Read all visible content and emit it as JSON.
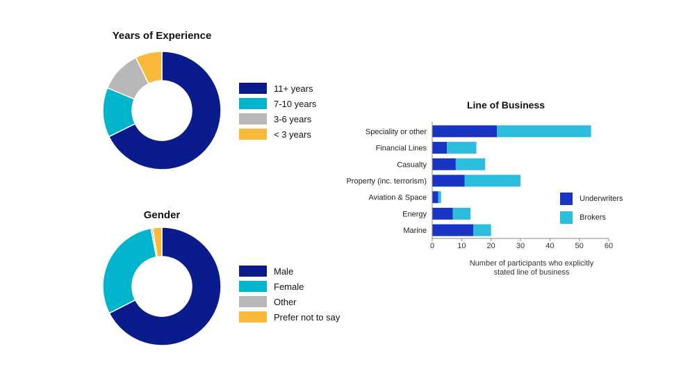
{
  "chart_data": [
    {
      "type": "pie",
      "title": "Years of Experience",
      "categories": [
        "11+ years",
        "7-10 years",
        "3-6 years",
        "< 3 years"
      ],
      "values": [
        65,
        13,
        11,
        7
      ],
      "colors": [
        "#0a1b8c",
        "#00b4cc",
        "#b7b7b7",
        "#f9b93a"
      ],
      "legend": "right"
    },
    {
      "type": "pie",
      "title": "Gender",
      "categories": [
        "Male",
        "Female",
        "Other",
        "Prefer not to say"
      ],
      "values": [
        67.5,
        29.5,
        0.5,
        2.5
      ],
      "colors": [
        "#0a1b8c",
        "#00b4cc",
        "#b7b7b7",
        "#f9b93a"
      ],
      "legend": "right"
    },
    {
      "type": "bar",
      "orientation": "horizontal",
      "stacked": true,
      "title": "Line of Business",
      "categories": [
        "Speciality or other",
        "Financial Lines",
        "Casualty",
        "Property (inc. terrorism)",
        "Aviation & Space",
        "Energy",
        "Marine"
      ],
      "series": [
        {
          "name": "Underwriters",
          "color": "#1a35c4",
          "values": [
            22,
            5,
            8,
            11,
            2,
            7,
            14
          ]
        },
        {
          "name": "Brokers",
          "color": "#2cbcdc",
          "values": [
            32,
            10,
            10,
            19,
            1,
            6,
            6
          ]
        }
      ],
      "xlabel": "Number of participants who explicitly stated line of business",
      "xlabel_lines": [
        "Number of participants who explicitly",
        "stated line of business"
      ],
      "xlim": [
        0,
        60
      ],
      "xticks": [
        0,
        10,
        20,
        30,
        40,
        50,
        60
      ],
      "grid": false,
      "legend": "right"
    }
  ]
}
